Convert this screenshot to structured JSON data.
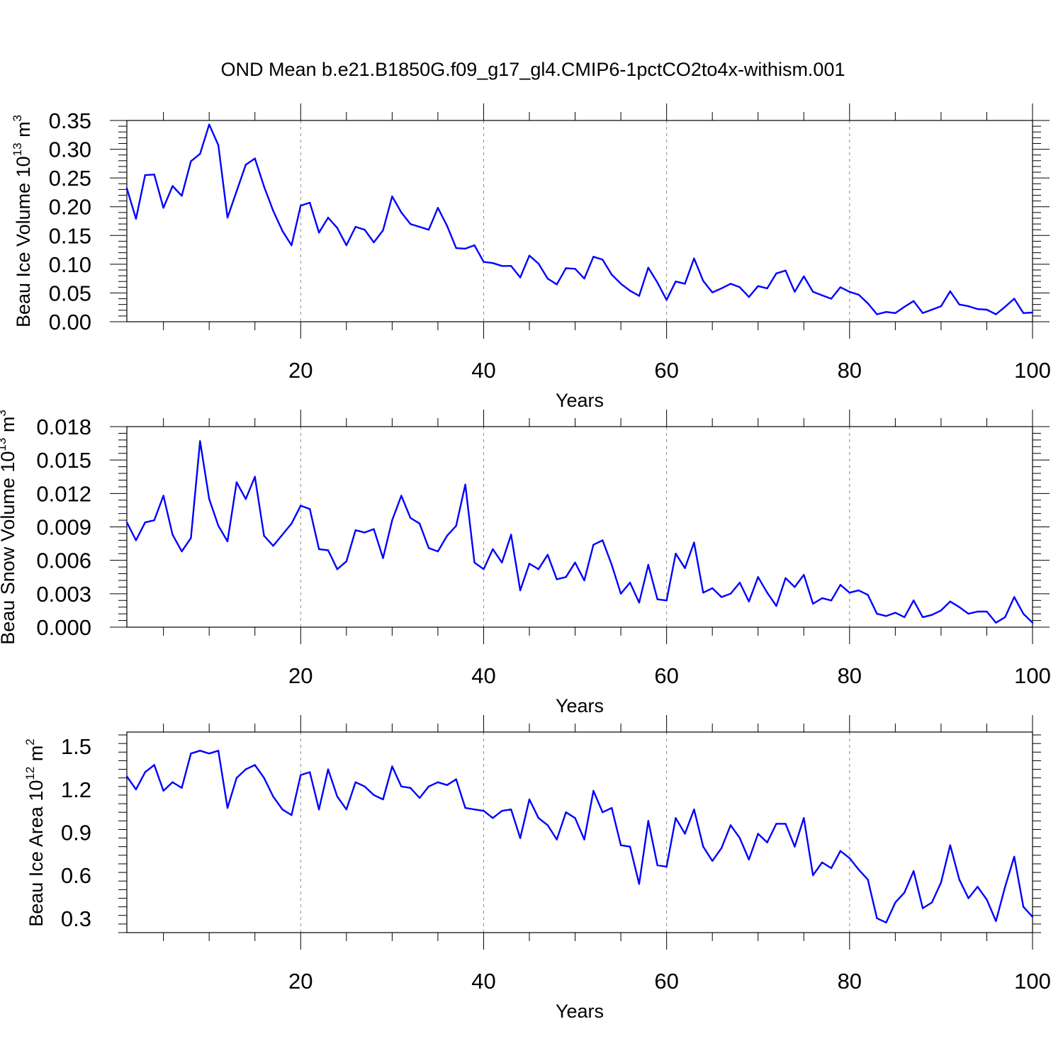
{
  "title": "OND Mean b.e21.B1850G.f09_g17_gl4.CMIP6-1pctCO2to4x-withism.001",
  "chart_data": [
    {
      "type": "line",
      "name": "ice-volume",
      "ylabel": {
        "main": "Beau Ice Volume 10",
        "exp": "13",
        "unit": " m",
        "unit_exp": "3"
      },
      "xlabel": "Years",
      "xlim": [
        1,
        100
      ],
      "ylim": [
        0,
        0.35
      ],
      "xticks": [
        "20",
        "40",
        "60",
        "80",
        "100"
      ],
      "yticks": [
        "0.00",
        "0.05",
        "0.10",
        "0.15",
        "0.20",
        "0.25",
        "0.30",
        "0.35"
      ],
      "line_color": "#0000ff",
      "x": [
        1,
        2,
        3,
        4,
        5,
        6,
        7,
        8,
        9,
        10,
        11,
        12,
        13,
        14,
        15,
        16,
        17,
        18,
        19,
        20,
        21,
        22,
        23,
        24,
        25,
        26,
        27,
        28,
        29,
        30,
        31,
        32,
        33,
        34,
        35,
        36,
        37,
        38,
        39,
        40,
        41,
        42,
        43,
        44,
        45,
        46,
        47,
        48,
        49,
        50,
        51,
        52,
        53,
        54,
        55,
        56,
        57,
        58,
        59,
        60,
        61,
        62,
        63,
        64,
        65,
        66,
        67,
        68,
        69,
        70,
        71,
        72,
        73,
        74,
        75,
        76,
        77,
        78,
        79,
        80,
        81,
        82,
        83,
        84,
        85,
        86,
        87,
        88,
        89,
        90,
        91,
        92,
        93,
        94,
        95,
        96,
        97,
        98,
        99,
        100
      ],
      "values": [
        0.232,
        0.179,
        0.255,
        0.256,
        0.198,
        0.236,
        0.219,
        0.279,
        0.292,
        0.343,
        0.307,
        0.181,
        0.227,
        0.273,
        0.284,
        0.235,
        0.193,
        0.158,
        0.133,
        0.202,
        0.207,
        0.155,
        0.181,
        0.163,
        0.133,
        0.165,
        0.16,
        0.138,
        0.159,
        0.218,
        0.19,
        0.17,
        0.165,
        0.16,
        0.198,
        0.167,
        0.128,
        0.127,
        0.133,
        0.104,
        0.102,
        0.097,
        0.097,
        0.077,
        0.115,
        0.101,
        0.075,
        0.065,
        0.093,
        0.092,
        0.075,
        0.113,
        0.108,
        0.082,
        0.066,
        0.054,
        0.045,
        0.094,
        0.068,
        0.038,
        0.07,
        0.066,
        0.11,
        0.071,
        0.051,
        0.058,
        0.066,
        0.06,
        0.043,
        0.062,
        0.058,
        0.084,
        0.089,
        0.052,
        0.079,
        0.052,
        0.046,
        0.04,
        0.06,
        0.052,
        0.047,
        0.032,
        0.013,
        0.017,
        0.015,
        0.026,
        0.036,
        0.015,
        0.021,
        0.027,
        0.053,
        0.03,
        0.027,
        0.022,
        0.021,
        0.013,
        0.026,
        0.04,
        0.015,
        0.016
      ]
    },
    {
      "type": "line",
      "name": "snow-volume",
      "ylabel": {
        "main": "Beau Snow Volume 10",
        "exp": "13",
        "unit": " m",
        "unit_exp": "3"
      },
      "xlabel": "Years",
      "xlim": [
        1,
        100
      ],
      "ylim": [
        0,
        0.018
      ],
      "xticks": [
        "20",
        "40",
        "60",
        "80",
        "100"
      ],
      "yticks": [
        "0.000",
        "0.003",
        "0.006",
        "0.009",
        "0.012",
        "0.015",
        "0.018"
      ],
      "line_color": "#0000ff",
      "x": [
        1,
        2,
        3,
        4,
        5,
        6,
        7,
        8,
        9,
        10,
        11,
        12,
        13,
        14,
        15,
        16,
        17,
        18,
        19,
        20,
        21,
        22,
        23,
        24,
        25,
        26,
        27,
        28,
        29,
        30,
        31,
        32,
        33,
        34,
        35,
        36,
        37,
        38,
        39,
        40,
        41,
        42,
        43,
        44,
        45,
        46,
        47,
        48,
        49,
        50,
        51,
        52,
        53,
        54,
        55,
        56,
        57,
        58,
        59,
        60,
        61,
        62,
        63,
        64,
        65,
        66,
        67,
        68,
        69,
        70,
        71,
        72,
        73,
        74,
        75,
        76,
        77,
        78,
        79,
        80,
        81,
        82,
        83,
        84,
        85,
        86,
        87,
        88,
        89,
        90,
        91,
        92,
        93,
        94,
        95,
        96,
        97,
        98,
        99,
        100
      ],
      "values": [
        0.0094,
        0.0078,
        0.0094,
        0.0096,
        0.0118,
        0.0083,
        0.0068,
        0.008,
        0.0167,
        0.0115,
        0.0091,
        0.0077,
        0.013,
        0.0115,
        0.0135,
        0.0082,
        0.0073,
        0.0083,
        0.0093,
        0.0109,
        0.0106,
        0.007,
        0.0069,
        0.0052,
        0.0059,
        0.0087,
        0.0085,
        0.0088,
        0.0062,
        0.0096,
        0.0118,
        0.0098,
        0.0093,
        0.0071,
        0.0068,
        0.0082,
        0.0091,
        0.0128,
        0.0058,
        0.0052,
        0.007,
        0.0058,
        0.0083,
        0.0033,
        0.0057,
        0.0052,
        0.0065,
        0.0043,
        0.0045,
        0.0058,
        0.0042,
        0.0074,
        0.0078,
        0.0056,
        0.003,
        0.004,
        0.0022,
        0.0056,
        0.0025,
        0.0024,
        0.0066,
        0.0053,
        0.0076,
        0.0031,
        0.0035,
        0.0027,
        0.003,
        0.004,
        0.0023,
        0.0045,
        0.0031,
        0.0019,
        0.0044,
        0.0036,
        0.0047,
        0.0021,
        0.0026,
        0.0024,
        0.0038,
        0.0031,
        0.0033,
        0.0029,
        0.0012,
        0.001,
        0.0013,
        0.0009,
        0.0024,
        0.0009,
        0.0011,
        0.0015,
        0.0023,
        0.0018,
        0.0012,
        0.0014,
        0.0014,
        0.0004,
        0.0009,
        0.0027,
        0.0012,
        0.0004
      ]
    },
    {
      "type": "line",
      "name": "ice-area",
      "ylabel": {
        "main": "Beau Ice Area 10",
        "exp": "12",
        "unit": " m",
        "unit_exp": "2"
      },
      "xlabel": "Years",
      "xlim": [
        1,
        100
      ],
      "ylim": [
        0.2,
        1.6
      ],
      "xticks": [
        "20",
        "40",
        "60",
        "80",
        "100"
      ],
      "yticks": [
        "0.3",
        "0.6",
        "0.9",
        "1.2",
        "1.5"
      ],
      "line_color": "#0000ff",
      "x": [
        1,
        2,
        3,
        4,
        5,
        6,
        7,
        8,
        9,
        10,
        11,
        12,
        13,
        14,
        15,
        16,
        17,
        18,
        19,
        20,
        21,
        22,
        23,
        24,
        25,
        26,
        27,
        28,
        29,
        30,
        31,
        32,
        33,
        34,
        35,
        36,
        37,
        38,
        39,
        40,
        41,
        42,
        43,
        44,
        45,
        46,
        47,
        48,
        49,
        50,
        51,
        52,
        53,
        54,
        55,
        56,
        57,
        58,
        59,
        60,
        61,
        62,
        63,
        64,
        65,
        66,
        67,
        68,
        69,
        70,
        71,
        72,
        73,
        74,
        75,
        76,
        77,
        78,
        79,
        80,
        81,
        82,
        83,
        84,
        85,
        86,
        87,
        88,
        89,
        90,
        91,
        92,
        93,
        94,
        95,
        96,
        97,
        98,
        99,
        100
      ],
      "values": [
        1.29,
        1.2,
        1.32,
        1.37,
        1.19,
        1.25,
        1.21,
        1.45,
        1.47,
        1.45,
        1.47,
        1.07,
        1.28,
        1.34,
        1.37,
        1.28,
        1.15,
        1.06,
        1.02,
        1.3,
        1.32,
        1.06,
        1.34,
        1.15,
        1.06,
        1.25,
        1.22,
        1.16,
        1.13,
        1.36,
        1.22,
        1.21,
        1.14,
        1.22,
        1.25,
        1.23,
        1.27,
        1.07,
        1.06,
        1.05,
        1.0,
        1.05,
        1.06,
        0.86,
        1.13,
        1.0,
        0.95,
        0.85,
        1.04,
        1.0,
        0.85,
        1.19,
        1.04,
        1.07,
        0.81,
        0.8,
        0.54,
        0.98,
        0.67,
        0.66,
        1.0,
        0.89,
        1.06,
        0.8,
        0.7,
        0.79,
        0.95,
        0.86,
        0.71,
        0.89,
        0.83,
        0.96,
        0.96,
        0.8,
        1.0,
        0.6,
        0.69,
        0.65,
        0.77,
        0.72,
        0.64,
        0.57,
        0.3,
        0.27,
        0.41,
        0.48,
        0.63,
        0.37,
        0.41,
        0.55,
        0.81,
        0.57,
        0.44,
        0.52,
        0.43,
        0.28,
        0.52,
        0.73,
        0.38,
        0.31
      ]
    }
  ]
}
